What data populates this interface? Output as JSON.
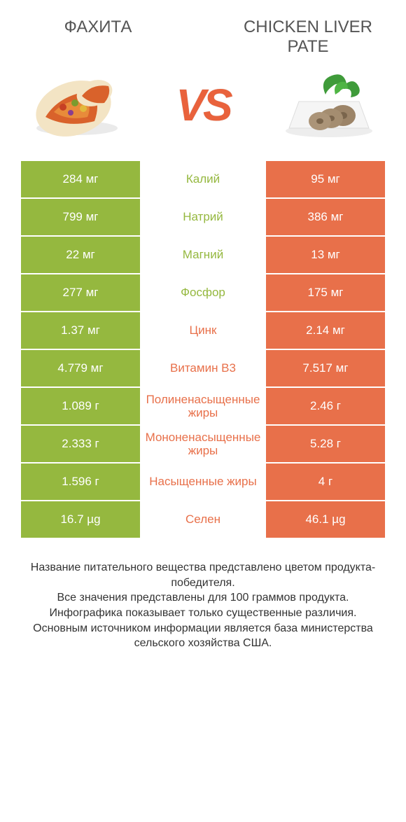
{
  "colors": {
    "green": "#95b83f",
    "orange": "#e8704a",
    "mid_green_text": "#95b83f",
    "mid_orange_text": "#e8704a",
    "vs": "#e9623c"
  },
  "header": {
    "left_title": "ФАХИТА",
    "right_title": "CHICKEN LIVER PATE",
    "vs": "VS"
  },
  "rows": [
    {
      "left": "284 мг",
      "mid": "Калий",
      "right": "95 мг",
      "winner": "left"
    },
    {
      "left": "799 мг",
      "mid": "Натрий",
      "right": "386 мг",
      "winner": "left"
    },
    {
      "left": "22 мг",
      "mid": "Магний",
      "right": "13 мг",
      "winner": "left"
    },
    {
      "left": "277 мг",
      "mid": "Фосфор",
      "right": "175 мг",
      "winner": "left"
    },
    {
      "left": "1.37 мг",
      "mid": "Цинк",
      "right": "2.14 мг",
      "winner": "right"
    },
    {
      "left": "4.779 мг",
      "mid": "Витамин B3",
      "right": "7.517 мг",
      "winner": "right"
    },
    {
      "left": "1.089 г",
      "mid": "Полиненасыщенные жиры",
      "right": "2.46 г",
      "winner": "right"
    },
    {
      "left": "2.333 г",
      "mid": "Мононенасыщенные жиры",
      "right": "5.28 г",
      "winner": "right"
    },
    {
      "left": "1.596 г",
      "mid": "Насыщенные жиры",
      "right": "4 г",
      "winner": "right"
    },
    {
      "left": "16.7 µg",
      "mid": "Селен",
      "right": "46.1 µg",
      "winner": "right"
    }
  ],
  "footer": {
    "line1": "Название питательного вещества представлено цветом продукта-победителя.",
    "line2": "Все значения представлены для 100 граммов продукта.",
    "line3": "Инфографика показывает только существенные различия.",
    "line4": "Основным источником информации является база министерства сельского хозяйства США."
  }
}
